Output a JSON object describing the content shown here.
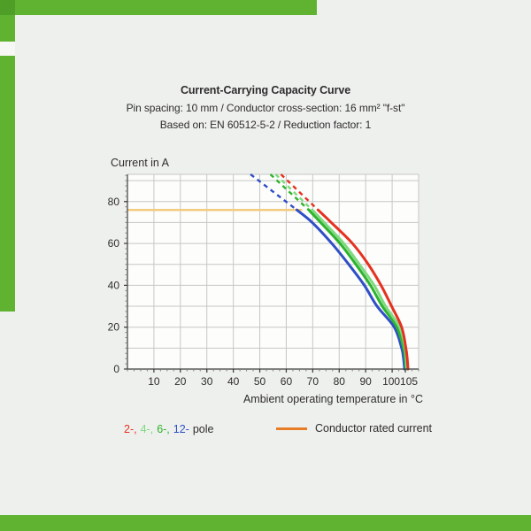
{
  "page": {
    "bg": "#eef0ed"
  },
  "frame": {
    "green": "#5fb331",
    "green_dark": "#4f9e28",
    "gap": "#f7f8f5"
  },
  "chart_data": {
    "type": "line",
    "title": "Current-Carrying Capacity Curve",
    "subtitle1": "Pin spacing: 10 mm / Conductor cross-section: 16 mm² \"f-st\"",
    "subtitle2": "Based on: EN 60512-5-2 / Reduction factor: 1",
    "ylabel": "Current in A",
    "xlabel": "Ambient operating temperature in °C",
    "xlim": [
      0,
      110
    ],
    "ylim": [
      0,
      93
    ],
    "grid": true,
    "x_gridlines": [
      10,
      20,
      30,
      40,
      50,
      60,
      70,
      80,
      90,
      100
    ],
    "y_gridlines": [
      10,
      20,
      30,
      40,
      50,
      60,
      70,
      80,
      90
    ],
    "x_ticks": [
      {
        "v": 10,
        "label": "10"
      },
      {
        "v": 20,
        "label": "20"
      },
      {
        "v": 30,
        "label": "30"
      },
      {
        "v": 40,
        "label": "40"
      },
      {
        "v": 50,
        "label": "50"
      },
      {
        "v": 60,
        "label": "60"
      },
      {
        "v": 70,
        "label": "70"
      },
      {
        "v": 80,
        "label": "80"
      },
      {
        "v": 90,
        "label": "90"
      },
      {
        "v": 100,
        "label": "100",
        "dx": -1
      },
      {
        "v": 105,
        "label": "105",
        "dx": 4
      }
    ],
    "y_ticks": [
      {
        "v": 0,
        "label": "0"
      },
      {
        "v": 20,
        "label": "20"
      },
      {
        "v": 40,
        "label": "40"
      },
      {
        "v": 60,
        "label": "60"
      },
      {
        "v": 80,
        "label": "80"
      }
    ],
    "grid_color": "#c6c8c5",
    "axis_color": "#3c3c3c",
    "plot_bg": "#fdfdfc",
    "text_color": "#2d2d2d",
    "rated_current": {
      "value": 76,
      "x_start": 0,
      "x_end": 66,
      "line_color": "#f1cb7e",
      "legend_color": "#e87d27",
      "label": "Conductor rated current"
    },
    "series": [
      {
        "name": "2-pole",
        "color": "#e53120",
        "dashed": [
          [
            58,
            93
          ],
          [
            72,
            76
          ]
        ],
        "points": [
          [
            72,
            76
          ],
          [
            77,
            70
          ],
          [
            85,
            60
          ],
          [
            91,
            50
          ],
          [
            95.8,
            40
          ],
          [
            99.8,
            30
          ],
          [
            103.6,
            20
          ],
          [
            105.2,
            10
          ],
          [
            105.7,
            5
          ],
          [
            106,
            0
          ]
        ]
      },
      {
        "name": "4-pole",
        "color": "#7fd97f",
        "dashed": [
          [
            56,
            93
          ],
          [
            69.8,
            76
          ]
        ],
        "points": [
          [
            69.8,
            76
          ],
          [
            74.3,
            70
          ],
          [
            81.7,
            60
          ],
          [
            87.6,
            50
          ],
          [
            93.2,
            40
          ],
          [
            97.5,
            30
          ],
          [
            102.8,
            20
          ],
          [
            104.9,
            10
          ],
          [
            105.3,
            5
          ],
          [
            105.5,
            0
          ]
        ]
      },
      {
        "name": "6-pole",
        "color": "#2db32d",
        "dashed": [
          [
            54,
            93
          ],
          [
            68.5,
            76
          ]
        ],
        "points": [
          [
            68.5,
            76
          ],
          [
            73,
            70
          ],
          [
            80.3,
            60
          ],
          [
            86.3,
            50
          ],
          [
            91.8,
            40
          ],
          [
            96.3,
            30
          ],
          [
            101.8,
            20
          ],
          [
            104.3,
            10
          ],
          [
            104.9,
            5
          ],
          [
            105.2,
            0
          ]
        ]
      },
      {
        "name": "12-pole",
        "color": "#2f4fc6",
        "dashed": [
          [
            46.5,
            93
          ],
          [
            64,
            76
          ]
        ],
        "points": [
          [
            64,
            76
          ],
          [
            69.8,
            70
          ],
          [
            77.2,
            60
          ],
          [
            83.6,
            50
          ],
          [
            89.5,
            40
          ],
          [
            94.3,
            30
          ],
          [
            100.8,
            20
          ],
          [
            103.6,
            10
          ],
          [
            104.3,
            5
          ],
          [
            104.7,
            0
          ]
        ]
      }
    ],
    "legend_pole": [
      {
        "text": "2-,",
        "color": "#e53120"
      },
      {
        "text": "4-,",
        "color": "#7fd97f"
      },
      {
        "text": "6-,",
        "color": "#2db32d"
      },
      {
        "text": "12-",
        "color": "#2f4fc6"
      },
      {
        "text": "pole",
        "color": "#2d2d2d"
      }
    ]
  }
}
